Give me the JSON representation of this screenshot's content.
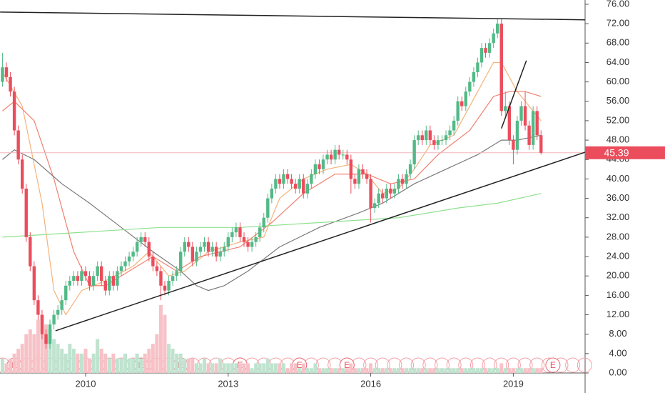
{
  "chart_data": {
    "type": "candlestick",
    "up_color": "#53b987",
    "down_color": "#eb4d5c",
    "volume_up_color": "#bfe3cf",
    "volume_down_color": "#f7c2c7",
    "categories": [
      null,
      null,
      null,
      null,
      null,
      null,
      null,
      null,
      null,
      null,
      null,
      null,
      null,
      null,
      null,
      null,
      null,
      null,
      null,
      null,
      null,
      "2010",
      null,
      null,
      null,
      null,
      null,
      null,
      null,
      null,
      null,
      null,
      null,
      null,
      null,
      null,
      null,
      null,
      null,
      null,
      null,
      null,
      null,
      null,
      null,
      null,
      null,
      null,
      null,
      null,
      null,
      null,
      null,
      null,
      null,
      null,
      null,
      "2013",
      null,
      null,
      null,
      null,
      null,
      null,
      null,
      null,
      null,
      null,
      null,
      null,
      null,
      null,
      null,
      null,
      null,
      null,
      null,
      null,
      null,
      null,
      null,
      null,
      null,
      null,
      null,
      null,
      null,
      null,
      null,
      null,
      null,
      null,
      null,
      "2016",
      null,
      null,
      null,
      null,
      null,
      null,
      null,
      null,
      null,
      null,
      null,
      null,
      null,
      null,
      null,
      null,
      null,
      null,
      null,
      null,
      null,
      null,
      null,
      null,
      null,
      null,
      null,
      null,
      null,
      null,
      null,
      null,
      null,
      null,
      null,
      "2019",
      null,
      null,
      null,
      null,
      null,
      null,
      null
    ],
    "open": [
      60,
      63,
      61,
      58,
      50,
      44,
      38,
      28,
      22,
      15,
      12,
      8,
      6,
      10,
      12,
      13,
      15,
      18,
      19,
      20,
      19,
      21,
      20,
      18,
      20,
      22,
      19,
      17,
      20,
      18,
      21,
      22,
      23,
      24,
      25,
      27,
      28,
      27,
      24,
      22,
      21,
      18,
      17,
      19,
      20,
      21,
      25,
      27,
      26,
      23,
      25,
      26,
      27,
      25,
      26,
      24,
      25,
      26,
      28,
      29,
      30,
      28,
      27,
      26,
      27,
      28,
      30,
      32,
      36,
      38,
      40,
      39,
      41,
      40,
      39,
      38,
      40,
      37,
      39,
      41,
      43,
      42,
      44,
      45,
      44,
      46,
      45,
      45,
      44,
      40,
      39,
      42,
      41,
      40,
      34,
      35,
      37,
      36,
      38,
      37,
      38,
      40,
      39,
      41,
      43,
      48,
      49,
      48,
      50,
      48,
      47,
      48,
      48,
      49,
      50,
      52,
      56,
      55,
      58,
      60,
      62,
      64,
      67,
      66,
      68,
      70,
      72,
      54,
      55,
      48,
      46,
      52,
      55,
      51,
      47,
      54,
      49
    ],
    "high": [
      66,
      64,
      62,
      59,
      51,
      45,
      39,
      29,
      23,
      16,
      13,
      9,
      11,
      13,
      14,
      16,
      19,
      20,
      21,
      21,
      22,
      22,
      21,
      21,
      23,
      23,
      20,
      21,
      21,
      22,
      23,
      24,
      25,
      26,
      28,
      29,
      29,
      28,
      25,
      23,
      22,
      19,
      20,
      21,
      22,
      26,
      28,
      28,
      27,
      26,
      27,
      28,
      28,
      27,
      27,
      26,
      27,
      29,
      30,
      31,
      31,
      29,
      28,
      28,
      29,
      31,
      33,
      37,
      39,
      41,
      41,
      42,
      42,
      41,
      40,
      41,
      41,
      40,
      42,
      44,
      44,
      45,
      46,
      46,
      47,
      47,
      46,
      46,
      45,
      41,
      43,
      43,
      42,
      41,
      36,
      38,
      38,
      39,
      39,
      39,
      41,
      41,
      42,
      44,
      49,
      50,
      50,
      51,
      51,
      49,
      49,
      49,
      50,
      51,
      53,
      57,
      57,
      59,
      61,
      63,
      65,
      68,
      68,
      69,
      71,
      73,
      73,
      58,
      56,
      49,
      53,
      56,
      58,
      52,
      55,
      55,
      50
    ],
    "low": [
      59,
      60,
      57,
      49,
      43,
      37,
      27,
      21,
      14,
      11,
      7,
      5,
      5,
      9,
      11,
      12,
      14,
      17,
      18,
      18,
      18,
      19,
      17,
      17,
      19,
      18,
      16,
      16,
      17,
      17,
      20,
      21,
      22,
      23,
      24,
      26,
      26,
      23,
      21,
      20,
      15,
      16,
      16,
      18,
      19,
      20,
      24,
      25,
      22,
      22,
      24,
      25,
      24,
      24,
      23,
      23,
      24,
      25,
      27,
      28,
      27,
      26,
      25,
      25,
      26,
      27,
      29,
      31,
      35,
      37,
      38,
      38,
      39,
      38,
      37,
      37,
      36,
      36,
      38,
      40,
      41,
      41,
      43,
      43,
      43,
      44,
      44,
      43,
      37,
      38,
      38,
      40,
      39,
      31,
      33,
      34,
      35,
      35,
      36,
      36,
      37,
      38,
      38,
      40,
      42,
      47,
      47,
      47,
      47,
      46,
      46,
      47,
      47,
      48,
      49,
      51,
      54,
      54,
      57,
      59,
      61,
      63,
      65,
      65,
      67,
      69,
      53,
      53,
      47,
      43,
      45,
      51,
      50,
      46,
      46,
      48,
      45
    ],
    "close": [
      63,
      61,
      58,
      50,
      44,
      38,
      28,
      22,
      15,
      12,
      8,
      6,
      10,
      12,
      13,
      15,
      18,
      19,
      20,
      19,
      21,
      20,
      18,
      20,
      22,
      19,
      17,
      20,
      18,
      21,
      22,
      23,
      24,
      25,
      27,
      28,
      27,
      24,
      22,
      21,
      18,
      17,
      19,
      20,
      21,
      25,
      27,
      26,
      23,
      25,
      26,
      27,
      25,
      26,
      24,
      25,
      26,
      28,
      29,
      30,
      28,
      27,
      26,
      27,
      28,
      30,
      32,
      36,
      38,
      40,
      39,
      41,
      40,
      39,
      38,
      40,
      37,
      39,
      41,
      43,
      42,
      44,
      45,
      44,
      46,
      45,
      45,
      44,
      40,
      39,
      42,
      41,
      40,
      34,
      35,
      37,
      36,
      38,
      37,
      38,
      40,
      39,
      41,
      43,
      48,
      49,
      48,
      50,
      48,
      47,
      48,
      48,
      49,
      50,
      52,
      56,
      55,
      58,
      60,
      62,
      64,
      67,
      66,
      68,
      70,
      72,
      54,
      55,
      48,
      46,
      52,
      55,
      51,
      47,
      54,
      49,
      45.39
    ],
    "volume": [
      3,
      2,
      3,
      4,
      5,
      6,
      8,
      9,
      8,
      11,
      12,
      10,
      9,
      7,
      6,
      5,
      4,
      6,
      5,
      4,
      4,
      5,
      3,
      4,
      7,
      5,
      4,
      3,
      4,
      3,
      3,
      4,
      3,
      3,
      4,
      3,
      4,
      5,
      6,
      8,
      14,
      12,
      6,
      5,
      4,
      4,
      3,
      3,
      3,
      2,
      2,
      3,
      2,
      2,
      2,
      3,
      2,
      2,
      2,
      2,
      2,
      2,
      2,
      1,
      2,
      2,
      2,
      3,
      2,
      2,
      2,
      2,
      1,
      2,
      2,
      1,
      2,
      1,
      1,
      2,
      1,
      1,
      1,
      1,
      1,
      1,
      1,
      1,
      2,
      1,
      1,
      1,
      1,
      2,
      1,
      1,
      1,
      1,
      1,
      1,
      1,
      1,
      1,
      1,
      1,
      1,
      1,
      1,
      1,
      1,
      1,
      1,
      1,
      1,
      1,
      1,
      1,
      1,
      1,
      1,
      1,
      1,
      1,
      1,
      1,
      1,
      2,
      1,
      1,
      1,
      1,
      1,
      1,
      1,
      1,
      1,
      1
    ],
    "moving_averages": [
      {
        "color": "#f5b27a",
        "x": [
          0,
          5,
          10,
          13,
          16,
          20,
          26,
          33,
          37,
          42,
          46,
          52,
          60,
          66,
          70,
          76,
          82,
          88,
          92,
          96,
          100,
          104,
          108,
          114,
          118,
          124,
          126,
          130,
          134,
          136
        ],
        "values": [
          62,
          55,
          35,
          17,
          12,
          17,
          19,
          22,
          25,
          20,
          21,
          25,
          27,
          28,
          36,
          40,
          42,
          43,
          41,
          37,
          38,
          42,
          47,
          49,
          55,
          64,
          64,
          58,
          54,
          52
        ]
      },
      {
        "color": "#f08070",
        "x": [
          0,
          3,
          8,
          13,
          18,
          22,
          26,
          32,
          38,
          44,
          50,
          60,
          68,
          76,
          84,
          92,
          98,
          104,
          110,
          118,
          124,
          128,
          132,
          136
        ],
        "values": [
          54,
          56,
          52,
          40,
          25,
          18,
          18,
          21,
          24,
          21,
          24,
          26,
          31,
          37,
          41,
          41,
          39,
          40,
          45,
          50,
          57,
          58,
          58,
          57
        ]
      },
      {
        "color": "#7a7a7a",
        "x": [
          0,
          3,
          8,
          15,
          22,
          30,
          38,
          45,
          49,
          52,
          56,
          62,
          70,
          80,
          90,
          96,
          104,
          112,
          120,
          126,
          130,
          136
        ],
        "values": [
          44,
          46,
          44,
          39,
          35,
          30,
          25,
          21,
          18,
          17,
          18,
          21,
          26,
          30,
          33,
          35,
          39,
          42,
          45,
          48,
          48,
          49
        ]
      },
      {
        "color": "#8fe08f",
        "x": [
          0,
          20,
          40,
          60,
          80,
          100,
          115,
          125,
          136
        ],
        "values": [
          28,
          29,
          30,
          30,
          31,
          32,
          34,
          35,
          37
        ]
      }
    ],
    "trendlines": [
      {
        "color": "#222222",
        "x": [
          -0.6,
          147.1
        ],
        "values": [
          74.4,
          72.8
        ]
      },
      {
        "color": "#222222",
        "x": [
          13.4,
          147.1
        ],
        "values": [
          8.7,
          45.5
        ]
      },
      {
        "color": "#222222",
        "x": [
          126,
          132.3
        ],
        "values": [
          50.4,
          64.4
        ]
      }
    ],
    "events": {
      "label": "E",
      "positions": [
        3,
        35,
        45,
        60,
        75,
        87,
        139
      ]
    },
    "ylim": [
      0,
      76.88
    ],
    "yticks": [
      {
        "value": 0,
        "label": "0.00"
      },
      {
        "value": 4,
        "label": "4.00"
      },
      {
        "value": 8,
        "label": "8.00"
      },
      {
        "value": 12,
        "label": "12.00"
      },
      {
        "value": 16,
        "label": "16.00"
      },
      {
        "value": 20,
        "label": "20.00"
      },
      {
        "value": 24,
        "label": "24.00"
      },
      {
        "value": 28,
        "label": "28.00"
      },
      {
        "value": 32,
        "label": "32.00"
      },
      {
        "value": 36,
        "label": "36.00"
      },
      {
        "value": 40,
        "label": "40.00"
      },
      {
        "value": 44,
        "label": "44.00"
      },
      {
        "value": 48,
        "label": "48.00"
      },
      {
        "value": 52,
        "label": "52.00"
      },
      {
        "value": 56,
        "label": "56.00"
      },
      {
        "value": 60,
        "label": "60.00"
      },
      {
        "value": 64,
        "label": "64.00"
      },
      {
        "value": 68,
        "label": "68.00"
      },
      {
        "value": 72,
        "label": "72.00"
      },
      {
        "value": 76,
        "label": "76.00"
      }
    ]
  }
}
